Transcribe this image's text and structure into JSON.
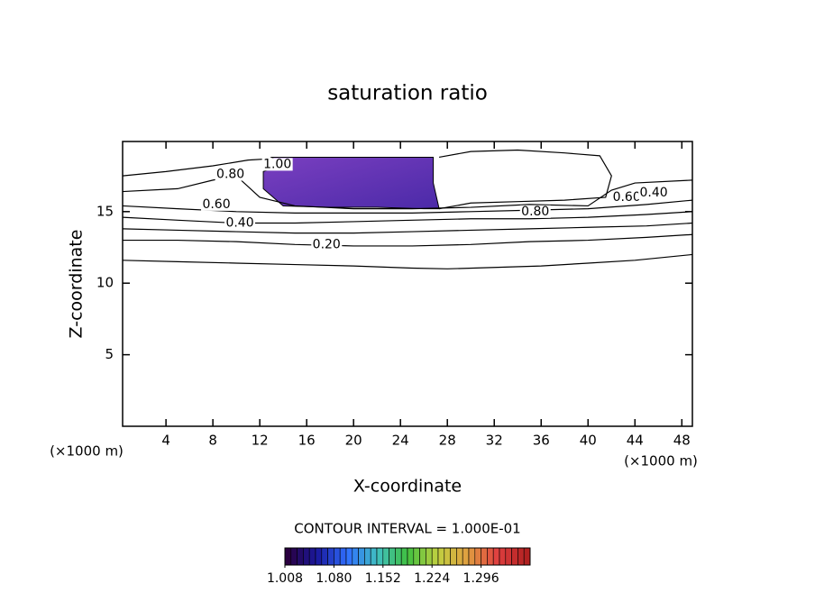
{
  "chart_data": {
    "type": "contour",
    "title": "saturation ratio",
    "x_label": "X-coordinate",
    "y_label": "Z-coordinate",
    "x_unit": "(×1000 m)",
    "y_unit": "(×1000 m)",
    "xlim": [
      0.3,
      48.9
    ],
    "ylim": [
      0,
      19.9
    ],
    "xticks": [
      4,
      8,
      12,
      16,
      20,
      24,
      28,
      32,
      36,
      40,
      44,
      48
    ],
    "yticks": [
      5,
      10,
      15
    ],
    "contours": [
      {
        "x": [
          0.3,
          5,
          10,
          15,
          20,
          25,
          28,
          32,
          36,
          40,
          44,
          48.9
        ],
        "y": [
          11.6,
          11.5,
          11.4,
          11.3,
          11.2,
          11.05,
          11.0,
          11.1,
          11.2,
          11.4,
          11.6,
          12.0
        ]
      },
      {
        "x": [
          0.3,
          5,
          10,
          15,
          20,
          25,
          30,
          35,
          40,
          45,
          48.9
        ],
        "y": [
          13.0,
          13.0,
          12.9,
          12.7,
          12.6,
          12.6,
          12.7,
          12.9,
          13.0,
          13.2,
          13.4
        ]
      },
      {
        "x": [
          0.3,
          5,
          10,
          15,
          20,
          25,
          30,
          35,
          40,
          45,
          48.9
        ],
        "y": [
          13.8,
          13.7,
          13.6,
          13.5,
          13.5,
          13.6,
          13.7,
          13.8,
          13.9,
          14.0,
          14.2
        ]
      },
      {
        "x": [
          0.3,
          5,
          10,
          15,
          20,
          25,
          30,
          35,
          40,
          45,
          48.9
        ],
        "y": [
          14.6,
          14.4,
          14.2,
          14.2,
          14.3,
          14.4,
          14.5,
          14.5,
          14.6,
          14.8,
          15.0
        ]
      },
      {
        "x": [
          0.3,
          5,
          10,
          15,
          20,
          25,
          30,
          35,
          40,
          45,
          48.9
        ],
        "y": [
          15.4,
          15.2,
          15.0,
          14.9,
          14.9,
          14.9,
          15.0,
          15.1,
          15.2,
          15.5,
          15.8
        ]
      },
      {
        "x": [
          0.3,
          5,
          8,
          10,
          12,
          15,
          20,
          25,
          30,
          35,
          40,
          42,
          44,
          48.9
        ],
        "y": [
          16.4,
          16.6,
          17.2,
          17.5,
          16.0,
          15.4,
          15.2,
          15.2,
          15.3,
          15.5,
          15.4,
          16.5,
          17.0,
          17.2
        ]
      },
      {
        "x": [
          0.3,
          4,
          8,
          11,
          13
        ],
        "y": [
          17.5,
          17.8,
          18.2,
          18.6,
          18.7
        ]
      },
      {
        "x": [
          27.3,
          30,
          34,
          38,
          41,
          42,
          41.5,
          38,
          34,
          30,
          27.3
        ],
        "y": [
          18.8,
          19.2,
          19.3,
          19.1,
          18.9,
          17.5,
          16.0,
          15.8,
          15.7,
          15.6,
          15.2
        ]
      }
    ],
    "annotations": [
      {
        "text": "0.20",
        "x": 17.7,
        "y": 12.7
      },
      {
        "text": "0.40",
        "x": 10.3,
        "y": 14.2
      },
      {
        "text": "0.60",
        "x": 8.3,
        "y": 15.5
      },
      {
        "text": "0.80",
        "x": 9.5,
        "y": 17.6
      },
      {
        "text": "1.00",
        "x": 13.5,
        "y": 18.3
      },
      {
        "text": "0.80",
        "x": 35.5,
        "y": 15.0
      },
      {
        "text": "0.60",
        "x": 43.3,
        "y": 16.0
      },
      {
        "text": "0.40",
        "x": 45.6,
        "y": 16.3
      }
    ],
    "region": {
      "x": [
        12.3,
        14,
        13,
        15,
        18,
        22,
        26.8,
        26.8,
        27.3,
        26,
        22,
        18,
        14,
        12.3
      ],
      "y": [
        17.8,
        18.3,
        18.8,
        18.8,
        18.8,
        18.8,
        18.8,
        17,
        15.2,
        15.2,
        15.3,
        15.3,
        15.4,
        16.6
      ],
      "colors": [
        "#7a3fc0",
        "#4b2aa8"
      ]
    },
    "contour_interval_text": "CONTOUR INTERVAL = 1.000E-01",
    "colorbar": {
      "lim": [
        1.008,
        1.368
      ],
      "ticks": [
        1.008,
        {
          "value": 1.08,
          "label": "1.080"
        },
        1.152,
        1.224,
        1.296
      ],
      "colors": [
        "#2a0040",
        "#1a1aa0",
        "#3070ff",
        "#40c0c0",
        "#40c040",
        "#c0d040",
        "#e0a040",
        "#e04040",
        "#b02020"
      ]
    }
  }
}
